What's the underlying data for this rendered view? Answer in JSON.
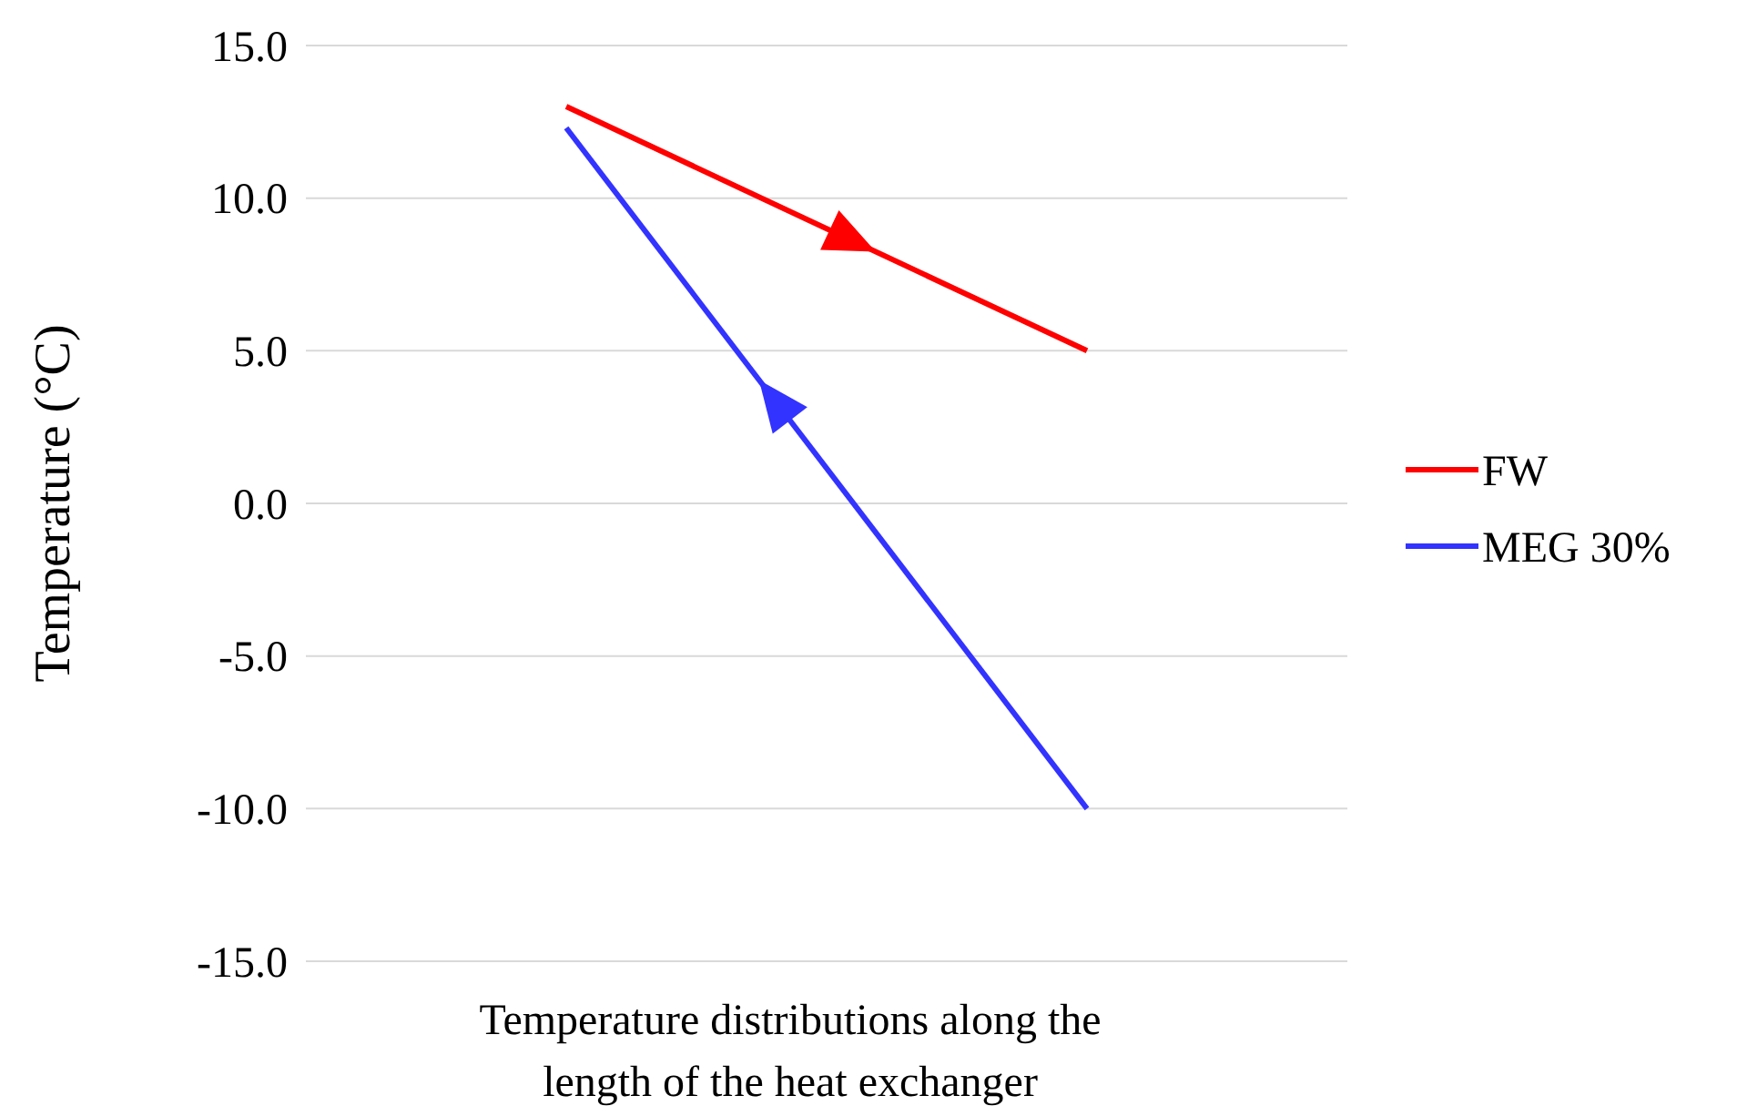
{
  "chart_data": {
    "type": "line",
    "xlabel": "Temperature distributions along the length of the heat exchanger",
    "ylabel": "Temperature (°C)",
    "categories": [
      null,
      null
    ],
    "series": [
      {
        "name": "FW",
        "color": "#ff0000",
        "values": [
          13.0,
          5.0
        ]
      },
      {
        "name": "MEG 30%",
        "color": "#3333ff",
        "values": [
          12.3,
          -10.0
        ]
      }
    ],
    "ylim": [
      -15,
      15
    ],
    "yticks": [
      {
        "value": -15,
        "label": "-15.0"
      },
      {
        "value": -10,
        "label": "-10.0"
      },
      {
        "value": -5,
        "label": "-5.0"
      },
      {
        "value": 0,
        "label": "0.0"
      },
      {
        "value": 5,
        "label": "5.0"
      },
      {
        "value": 10,
        "label": "10.0"
      },
      {
        "value": 15,
        "label": "15.0"
      }
    ],
    "grid": "y",
    "legend": "right",
    "marker": "none",
    "line_style": "solid"
  }
}
